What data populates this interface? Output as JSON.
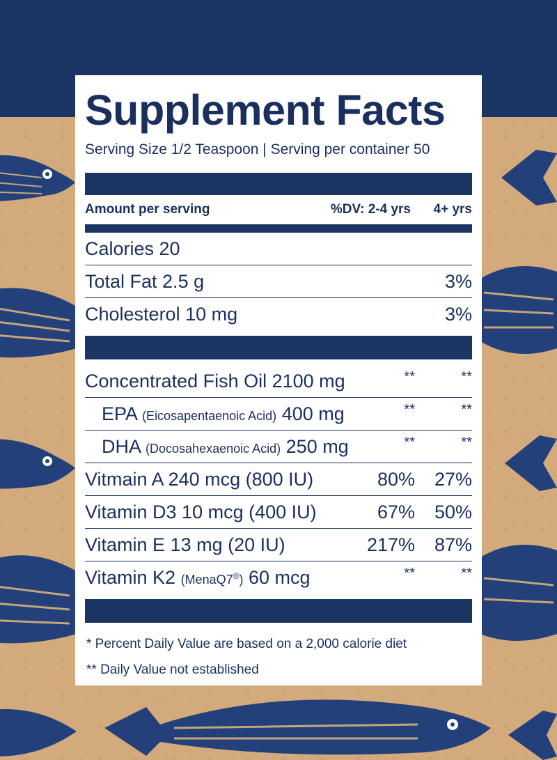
{
  "colors": {
    "navy": "#1a3464",
    "kraft": "#d3aa7c",
    "panel": "#ffffff"
  },
  "background_icon": "fish-illustration",
  "label": {
    "title": "Supplement Facts",
    "serving": "Serving Size 1/2 Teaspoon  |  Serving per container 50",
    "header": {
      "amount": "Amount per serving",
      "dv": "%DV:  2-4 yrs",
      "dv_older": "4+ yrs"
    },
    "rows_a": [
      {
        "name": "Calories 20",
        "v1": "",
        "v2": ""
      },
      {
        "name": "Total Fat 2.5 g",
        "v1": "",
        "v2": "3%"
      },
      {
        "name": "Cholesterol 10 mg",
        "v1": "",
        "v2": "3%"
      }
    ],
    "fish_oil": {
      "name": "Concentrated Fish Oil 2100 mg",
      "v1": "**",
      "v2": "**"
    },
    "epa": {
      "main": "EPA",
      "sub": "(Eicosapentaenoic Acid)",
      "amount": "400 mg",
      "v1": "**",
      "v2": "**"
    },
    "dha": {
      "main": "DHA",
      "sub": "(Docosahexaenoic Acid)",
      "amount": "250 mg",
      "v1": "**",
      "v2": "**"
    },
    "rows_b": [
      {
        "name": "Vitmain A 240 mcg (800 IU)",
        "v1": "80%",
        "v2": "27%"
      },
      {
        "name": "Vitamin D3 10 mcg (400 IU)",
        "v1": "67%",
        "v2": "50%"
      },
      {
        "name": "Vitamin E 13 mg (20 IU)",
        "v1": "217%",
        "v2": "87%"
      }
    ],
    "k2": {
      "main": "Vitamin K2",
      "sub": "(MenaQ7",
      "reg": "®",
      "close": ")",
      "amount": "60 mcg",
      "v1": "**",
      "v2": "**"
    },
    "footnotes": [
      "* Percent Daily Value are based on a 2,000 calorie diet",
      "** Daily Value not established"
    ]
  }
}
